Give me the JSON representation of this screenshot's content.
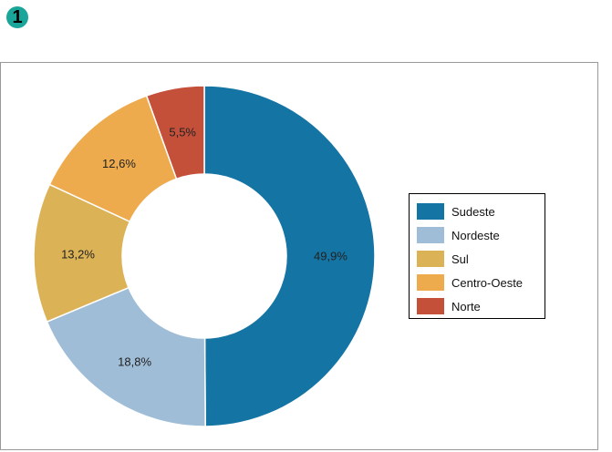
{
  "badge": "1",
  "chart_data": {
    "type": "pie",
    "donut": true,
    "categories": [
      "Sudeste",
      "Nordeste",
      "Sul",
      "Centro-Oeste",
      "Norte"
    ],
    "values": [
      49.9,
      18.8,
      13.2,
      12.6,
      5.5
    ],
    "labels": [
      "49,9%",
      "18,8%",
      "13,2%",
      "12,6%",
      "5,5%"
    ],
    "colors": [
      "#1474a4",
      "#9fbdd7",
      "#dcb257",
      "#eeab4e",
      "#c4503a"
    ],
    "legend_position": "right"
  }
}
